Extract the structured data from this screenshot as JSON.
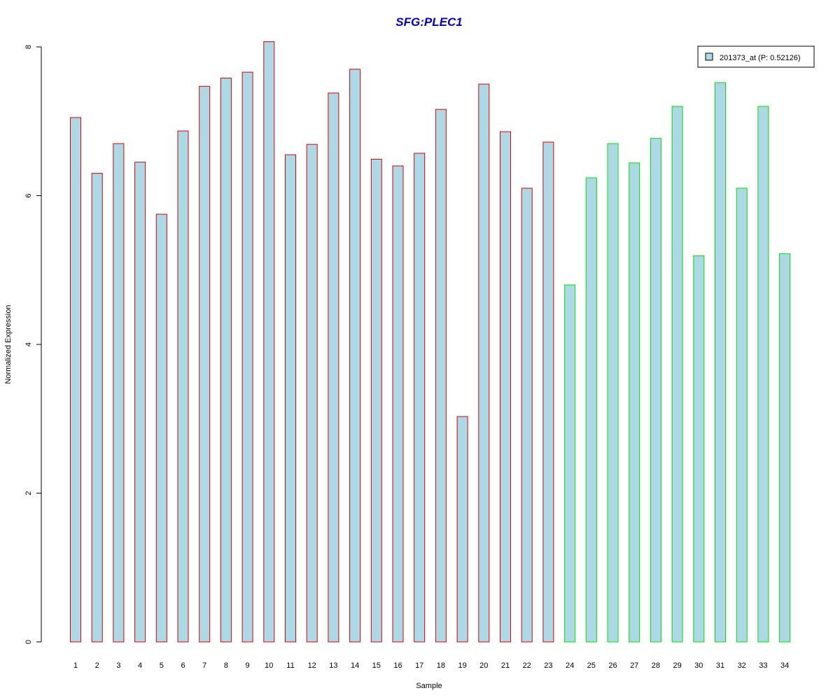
{
  "chart_data": {
    "type": "bar",
    "title": "SFG:PLEC1",
    "xlabel": "Sample",
    "ylabel": "Normalized Expression",
    "ylim": [
      0,
      8
    ],
    "yticks": [
      "0",
      "2",
      "4",
      "6",
      "8"
    ],
    "categories": [
      "1",
      "2",
      "3",
      "4",
      "5",
      "6",
      "7",
      "8",
      "9",
      "10",
      "11",
      "12",
      "13",
      "14",
      "15",
      "16",
      "17",
      "18",
      "19",
      "20",
      "21",
      "22",
      "23",
      "24",
      "25",
      "26",
      "27",
      "28",
      "29",
      "30",
      "31",
      "32",
      "33",
      "34"
    ],
    "series": [
      {
        "name": "201373_at (P: 0.52126)",
        "values": [
          7.05,
          6.3,
          6.7,
          6.45,
          5.75,
          6.87,
          7.47,
          7.58,
          7.66,
          8.07,
          6.55,
          6.69,
          7.38,
          7.7,
          6.49,
          6.4,
          6.57,
          7.16,
          3.03,
          7.5,
          6.86,
          6.1,
          6.72,
          4.8,
          6.24,
          6.7,
          6.44,
          6.77,
          7.2,
          5.19,
          7.52,
          6.1,
          7.2,
          5.22
        ]
      }
    ],
    "bar_fill": "#add8e6",
    "group_border_colors": [
      "#e00000",
      "#e00000",
      "#e00000",
      "#e00000",
      "#e00000",
      "#e00000",
      "#e00000",
      "#e00000",
      "#e00000",
      "#e00000",
      "#e00000",
      "#e00000",
      "#e00000",
      "#e00000",
      "#e00000",
      "#e00000",
      "#e00000",
      "#e00000",
      "#e00000",
      "#e00000",
      "#e00000",
      "#e00000",
      "#e00000",
      "#00e000",
      "#00e000",
      "#00e000",
      "#00e000",
      "#00e000",
      "#00e000",
      "#00e000",
      "#00e000",
      "#00e000",
      "#00e000",
      "#00e000"
    ],
    "title_color": "#0000cc",
    "legend": {
      "label": "201373_at (P: 0.52126)",
      "placement": "top-right"
    },
    "grid": false
  }
}
